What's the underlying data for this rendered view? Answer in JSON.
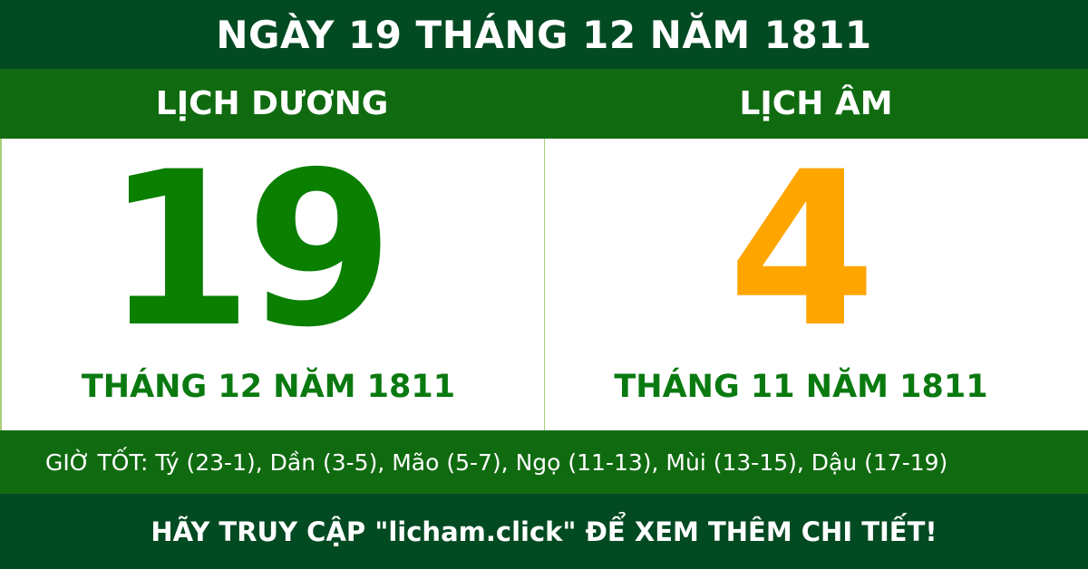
{
  "title": "NGÀY 19 THÁNG 12 NĂM 1811",
  "solar": {
    "heading": "LỊCH DƯƠNG",
    "day": "19",
    "month_year": "THÁNG 12 NĂM 1811"
  },
  "lunar": {
    "heading": "LỊCH ÂM",
    "day": "4",
    "month_year": "THÁNG 11 NĂM 1811"
  },
  "good_hours": "GIỜ TỐT: Tý (23-1), Dần (3-5), Mão (5-7), Ngọ (11-13), Mùi (13-15), Dậu (17-19)",
  "footer": "HÃY TRUY CẬP \"licham.click\" ĐỂ XEM THÊM CHI TIẾT!",
  "colors": {
    "dark_green": "#024a22",
    "green": "#106b10",
    "solar_day": "#0a7f00",
    "lunar_day": "#ffa500"
  }
}
